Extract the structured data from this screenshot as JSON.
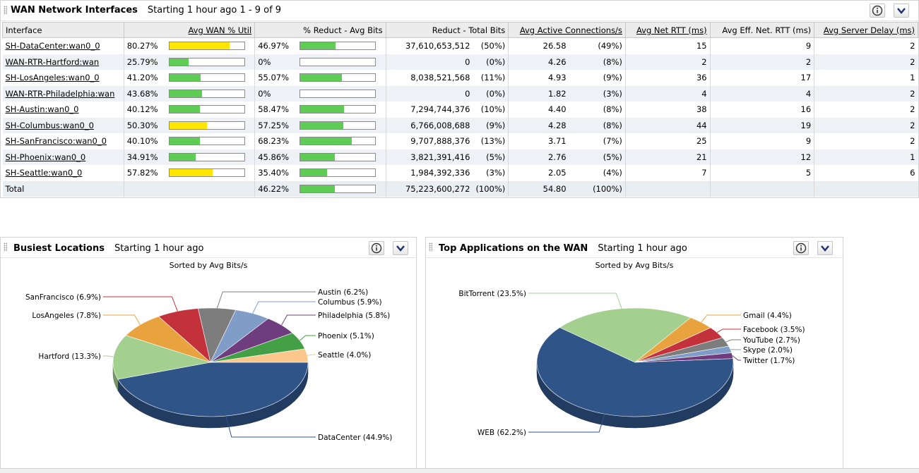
{
  "wan": {
    "title": "WAN Network Interfaces",
    "subtitle": "Starting 1 hour ago 1 - 9 of 9",
    "columns": [
      "Interface",
      "Avg WAN % Util",
      "% Reduct - Avg Bits",
      "Reduct - Total Bits",
      "Avg Active Connections/s",
      "Avg Net RTT (ms)",
      "Avg Eff. Net. RTT (ms)",
      "Avg Server Delay (ms)"
    ],
    "rows": [
      {
        "iface": "SH-DataCenter:wan0_0",
        "util": "80.27%",
        "util_v": 80.27,
        "util_color": "#ffe500",
        "red": "46.97%",
        "red_v": 46.97,
        "bits": "37,610,653,512",
        "bits_pct": "(50%)",
        "conn": "26.58",
        "conn_pct": "(49%)",
        "rtt": "15",
        "ertt": "9",
        "delay": "2"
      },
      {
        "iface": "WAN-RTR-Hartford:wan",
        "util": "25.79%",
        "util_v": 25.79,
        "util_color": "#5fcc55",
        "red": "0%",
        "red_v": 0,
        "bits": "0",
        "bits_pct": "(0%)",
        "conn": "4.26",
        "conn_pct": "(8%)",
        "rtt": "2",
        "ertt": "2",
        "delay": "2"
      },
      {
        "iface": "SH-LosAngeles:wan0_0",
        "util": "41.20%",
        "util_v": 41.2,
        "util_color": "#5fcc55",
        "red": "55.07%",
        "red_v": 55.07,
        "bits": "8,038,521,568",
        "bits_pct": "(11%)",
        "conn": "4.93",
        "conn_pct": "(9%)",
        "rtt": "36",
        "ertt": "17",
        "delay": "1"
      },
      {
        "iface": "WAN-RTR-Philadelphia:wan",
        "util": "43.68%",
        "util_v": 43.68,
        "util_color": "#5fcc55",
        "red": "0%",
        "red_v": 0,
        "bits": "0",
        "bits_pct": "(0%)",
        "conn": "1.82",
        "conn_pct": "(3%)",
        "rtt": "4",
        "ertt": "4",
        "delay": "2"
      },
      {
        "iface": "SH-Austin:wan0_0",
        "util": "40.12%",
        "util_v": 40.12,
        "util_color": "#5fcc55",
        "red": "58.47%",
        "red_v": 58.47,
        "bits": "7,294,744,376",
        "bits_pct": "(10%)",
        "conn": "4.40",
        "conn_pct": "(8%)",
        "rtt": "38",
        "ertt": "16",
        "delay": "2"
      },
      {
        "iface": "SH-Columbus:wan0_0",
        "util": "50.30%",
        "util_v": 50.3,
        "util_color": "#ffe500",
        "red": "57.25%",
        "red_v": 57.25,
        "bits": "6,766,008,688",
        "bits_pct": "(9%)",
        "conn": "4.28",
        "conn_pct": "(8%)",
        "rtt": "44",
        "ertt": "19",
        "delay": "2"
      },
      {
        "iface": "SH-SanFrancisco:wan0_0",
        "util": "40.10%",
        "util_v": 40.1,
        "util_color": "#5fcc55",
        "red": "68.23%",
        "red_v": 68.23,
        "bits": "9,707,888,376",
        "bits_pct": "(13%)",
        "conn": "3.71",
        "conn_pct": "(7%)",
        "rtt": "25",
        "ertt": "9",
        "delay": "2"
      },
      {
        "iface": "SH-Phoenix:wan0_0",
        "util": "34.91%",
        "util_v": 34.91,
        "util_color": "#5fcc55",
        "red": "45.86%",
        "red_v": 45.86,
        "bits": "3,821,391,416",
        "bits_pct": "(5%)",
        "conn": "2.76",
        "conn_pct": "(5%)",
        "rtt": "21",
        "ertt": "12",
        "delay": "1"
      },
      {
        "iface": "SH-Seattle:wan0_0",
        "util": "57.82%",
        "util_v": 57.82,
        "util_color": "#ffe500",
        "red": "35.40%",
        "red_v": 35.4,
        "bits": "1,984,392,336",
        "bits_pct": "(3%)",
        "conn": "2.05",
        "conn_pct": "(4%)",
        "rtt": "7",
        "ertt": "5",
        "delay": "6"
      }
    ],
    "total": {
      "label": "Total",
      "red": "46.22%",
      "red_v": 46.22,
      "bits": "75,223,600,272",
      "bits_pct": "(100%)",
      "conn": "54.80",
      "conn_pct": "(100%)"
    }
  },
  "colors": {
    "bar_green": "#5fcc55",
    "bar_yellow": "#ffe500",
    "accent": "#2a4fa0"
  },
  "busiest": {
    "title": "Busiest Locations",
    "subtitle": "Starting 1 hour ago",
    "sorted": "Sorted by Avg Bits/s",
    "slices": [
      {
        "label": "DataCenter (44.9%)",
        "value": 44.9,
        "color": "#2f5487",
        "side": "R",
        "ly": 620
      },
      {
        "label": "Hartford (13.3%)",
        "value": 13.3,
        "color": "#a3cf8f",
        "side": "L",
        "ly": 505
      },
      {
        "label": "LosAngeles (7.8%)",
        "value": 7.8,
        "color": "#e9a33e",
        "side": "L",
        "ly": 447
      },
      {
        "label": "SanFrancisco (6.9%)",
        "value": 6.9,
        "color": "#c3323a",
        "side": "L",
        "ly": 421
      },
      {
        "label": "Austin (6.2%)",
        "value": 6.2,
        "color": "#7d7d7d",
        "side": "R",
        "ly": 414
      },
      {
        "label": "Columbus (5.9%)",
        "value": 5.9,
        "color": "#7f9dc6",
        "side": "R",
        "ly": 428
      },
      {
        "label": "Philadelphia (5.8%)",
        "value": 5.8,
        "color": "#6f3c7e",
        "side": "R",
        "ly": 447
      },
      {
        "label": "Phoenix (5.1%)",
        "value": 5.1,
        "color": "#44a046",
        "side": "R",
        "ly": 476
      },
      {
        "label": "Seattle (4.0%)",
        "value": 4.0,
        "color": "#fbc78a",
        "side": "R",
        "ly": 503
      }
    ]
  },
  "apps": {
    "title": "Top Applications on the WAN",
    "subtitle": "Starting 1 hour ago",
    "sorted": "Sorted by Avg Bits/s",
    "slices": [
      {
        "label": "WEB (62.2%)",
        "value": 62.2,
        "color": "#2f5487",
        "side": "L",
        "ly": 613
      },
      {
        "label": "BitTorrent (23.5%)",
        "value": 23.5,
        "color": "#a3cf8f",
        "side": "L",
        "ly": 416
      },
      {
        "label": "Gmail (4.4%)",
        "value": 4.4,
        "color": "#e9a33e",
        "side": "R",
        "ly": 447
      },
      {
        "label": "Facebook (3.5%)",
        "value": 3.5,
        "color": "#c3323a",
        "side": "R",
        "ly": 467
      },
      {
        "label": "YouTube (2.7%)",
        "value": 2.7,
        "color": "#7d7d7d",
        "side": "R",
        "ly": 482
      },
      {
        "label": "Skype (2.0%)",
        "value": 2.0,
        "color": "#7f9dc6",
        "side": "R",
        "ly": 496
      },
      {
        "label": "Twitter (1.7%)",
        "value": 1.7,
        "color": "#6f3c7e",
        "side": "R",
        "ly": 511
      }
    ]
  },
  "chart_data": [
    {
      "type": "pie",
      "title": "Busiest Locations",
      "subtitle": "Sorted by Avg Bits/s",
      "categories": [
        "DataCenter",
        "Hartford",
        "LosAngeles",
        "SanFrancisco",
        "Austin",
        "Columbus",
        "Philadelphia",
        "Phoenix",
        "Seattle"
      ],
      "values": [
        44.9,
        13.3,
        7.8,
        6.9,
        6.2,
        5.9,
        5.8,
        5.1,
        4.0
      ]
    },
    {
      "type": "pie",
      "title": "Top Applications on the WAN",
      "subtitle": "Sorted by Avg Bits/s",
      "categories": [
        "WEB",
        "BitTorrent",
        "Gmail",
        "Facebook",
        "YouTube",
        "Skype",
        "Twitter"
      ],
      "values": [
        62.2,
        23.5,
        4.4,
        3.5,
        2.7,
        2.0,
        1.7
      ]
    }
  ]
}
